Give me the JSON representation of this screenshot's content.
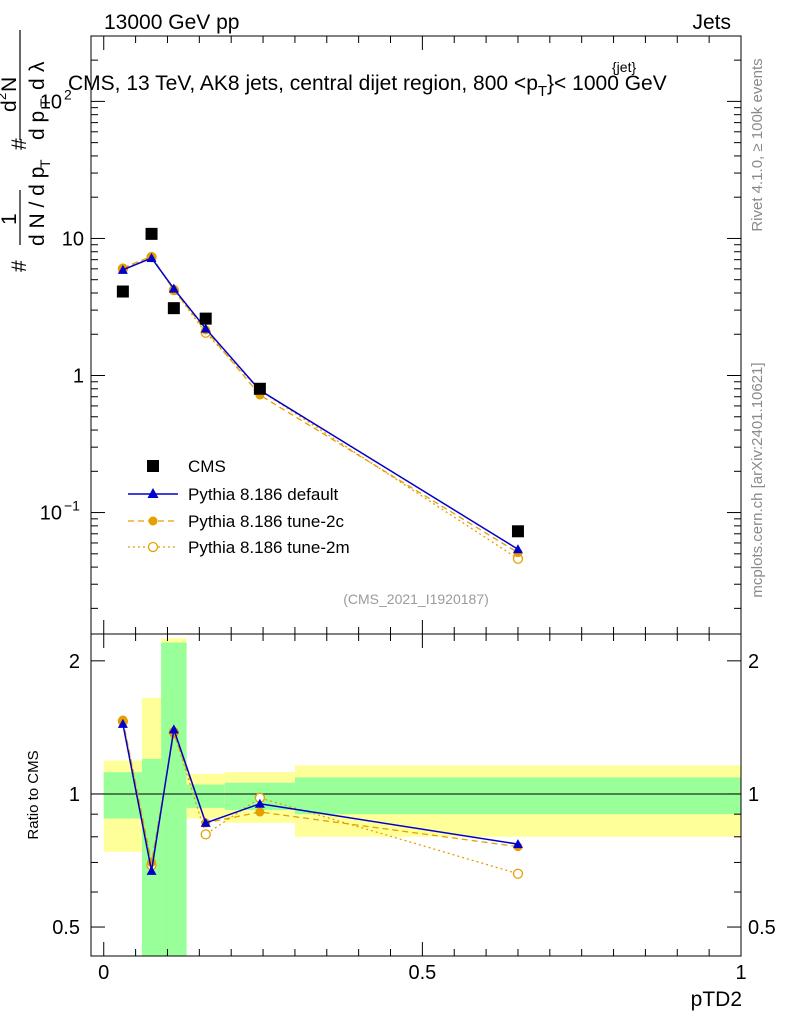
{
  "header": {
    "left": "13000 GeV pp",
    "right": "Jets"
  },
  "side": {
    "upper": "Rivet 4.1.0, ≥ 100k events",
    "lower": "mcplots.cern.ch [arXiv:2401.10621]"
  },
  "watermark": "(CMS_2021_I1920187)",
  "colors": {
    "data": "#000000",
    "default": "#0000cc",
    "tune2c": "#e5a000",
    "tune2m": "#e5a000",
    "band_inner": "#99ff99",
    "band_outer": "#ffff99"
  },
  "chart_data": [
    {
      "type": "scatter",
      "scale": "log",
      "title": "CMS, 13 TeV, AK8 jets, central dijet region, 800 <p_T^{jet}< 1000 GeV",
      "title_parts": {
        "main": "CMS, 13 TeV, AK8 jets, central dijet region, 800 <p",
        "sub": "T",
        "sup": "{jet}",
        "tail": "}< 1000 GeV"
      },
      "ylabel": "1/(dN/dp_T) d²N/(dp_T dλ)",
      "ylim": [
        0.013,
        300
      ],
      "yticks": [
        {
          "value": 0.1,
          "label": "10",
          "exp": "−1"
        },
        {
          "value": 1,
          "label": "1",
          "exp": ""
        },
        {
          "value": 10,
          "label": "10",
          "exp": ""
        },
        {
          "value": 100,
          "label": "10",
          "exp": "2"
        }
      ],
      "legend": {
        "position": "lower-left",
        "entries": [
          {
            "key": "data",
            "label": "CMS"
          },
          {
            "key": "default",
            "label": "Pythia 8.186 default"
          },
          {
            "key": "tune2c",
            "label": "Pythia 8.186 tune-2c"
          },
          {
            "key": "tune2m",
            "label": "Pythia 8.186 tune-2m"
          }
        ]
      },
      "series": [
        {
          "key": "data",
          "name": "CMS",
          "x": [
            0.03,
            0.075,
            0.11,
            0.16,
            0.245,
            0.65
          ],
          "y": [
            4.1,
            10.8,
            3.1,
            2.6,
            0.8,
            0.073
          ]
        },
        {
          "key": "default",
          "name": "Pythia 8.186 default",
          "x": [
            0.03,
            0.075,
            0.11,
            0.16,
            0.245,
            0.65
          ],
          "y": [
            5.9,
            7.2,
            4.3,
            2.2,
            0.78,
            0.054
          ]
        },
        {
          "key": "tune2c",
          "name": "Pythia 8.186 tune-2c",
          "x": [
            0.03,
            0.075,
            0.11,
            0.16,
            0.245,
            0.65
          ],
          "y": [
            6.1,
            7.4,
            4.2,
            2.15,
            0.72,
            0.051
          ]
        },
        {
          "key": "tune2m",
          "name": "Pythia 8.186 tune-2m",
          "x": [
            0.03,
            0.075,
            0.11,
            0.16,
            0.245,
            0.65
          ],
          "y": [
            6.0,
            7.3,
            4.2,
            2.05,
            0.78,
            0.046
          ]
        }
      ]
    },
    {
      "type": "scatter",
      "scale": "log",
      "ylabel": "Ratio to CMS",
      "xlabel": "pTD2",
      "xlim": [
        -0.02,
        1.0
      ],
      "ylim": [
        0.43,
        2.3
      ],
      "xticks": [
        {
          "value": 0,
          "label": "0"
        },
        {
          "value": 0.5,
          "label": "0.5"
        },
        {
          "value": 1,
          "label": "1"
        }
      ],
      "yticks": [
        {
          "value": 0.5,
          "label": "0.5"
        },
        {
          "value": 1,
          "label": "1"
        },
        {
          "value": 2,
          "label": "2"
        }
      ],
      "bands": [
        {
          "x0": 0.0,
          "x1": 0.06,
          "inner": [
            0.88,
            1.12
          ],
          "outer": [
            0.74,
            1.19
          ]
        },
        {
          "x0": 0.06,
          "x1": 0.09,
          "inner": [
            0.4,
            1.2
          ],
          "outer": [
            0.4,
            1.65
          ]
        },
        {
          "x0": 0.09,
          "x1": 0.13,
          "inner": [
            0.4,
            2.2
          ],
          "outer": [
            0.4,
            2.25
          ]
        },
        {
          "x0": 0.13,
          "x1": 0.19,
          "inner": [
            0.93,
            1.05
          ],
          "outer": [
            0.88,
            1.11
          ]
        },
        {
          "x0": 0.19,
          "x1": 0.3,
          "inner": [
            0.92,
            1.06
          ],
          "outer": [
            0.86,
            1.12
          ]
        },
        {
          "x0": 0.3,
          "x1": 1.0,
          "inner": [
            0.9,
            1.09
          ],
          "outer": [
            0.8,
            1.16
          ]
        }
      ],
      "series": [
        {
          "key": "default",
          "name": "Pythia 8.186 default",
          "x": [
            0.03,
            0.075,
            0.11,
            0.16,
            0.245,
            0.65
          ],
          "y": [
            1.44,
            0.67,
            1.4,
            0.86,
            0.95,
            0.77
          ]
        },
        {
          "key": "tune2c",
          "name": "Pythia 8.186 tune-2c",
          "x": [
            0.03,
            0.075,
            0.11,
            0.16,
            0.245,
            0.65
          ],
          "y": [
            1.47,
            0.7,
            1.37,
            0.86,
            0.91,
            0.76
          ]
        },
        {
          "key": "tune2m",
          "name": "Pythia 8.186 tune-2m",
          "x": [
            0.03,
            0.075,
            0.11,
            0.16,
            0.245,
            0.65
          ],
          "y": [
            1.46,
            0.69,
            1.38,
            0.81,
            0.98,
            0.66
          ]
        }
      ]
    }
  ]
}
